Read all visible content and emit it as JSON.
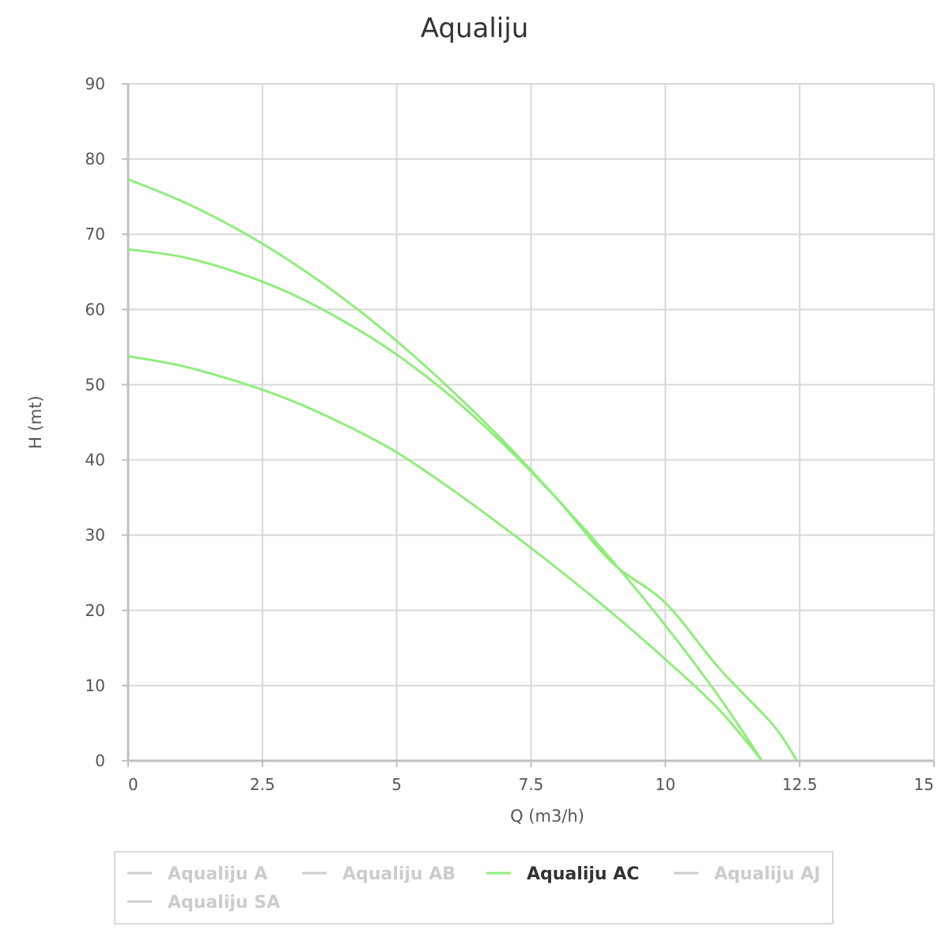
{
  "chart_data": {
    "type": "line",
    "title": "Aqualiju",
    "xlabel": "Q (m3/h)",
    "ylabel": "H (mt)",
    "xlim": [
      0,
      15
    ],
    "ylim": [
      0,
      90
    ],
    "x_ticks": [
      "0",
      "2.5",
      "5",
      "7.5",
      "10",
      "12.5",
      "15"
    ],
    "y_ticks": [
      "0",
      "10",
      "20",
      "30",
      "40",
      "50",
      "60",
      "70",
      "80",
      "90"
    ],
    "grid": true,
    "legend_position": "bottom",
    "series": [
      {
        "group": "Aqualiju AC",
        "color": "#90ed7d",
        "x": [
          0,
          1,
          2,
          3,
          4,
          5,
          6,
          7,
          8,
          9,
          10,
          11,
          11.8
        ],
        "y": [
          53.8,
          52.5,
          50.5,
          48,
          44.8,
          41,
          36.2,
          31,
          25.5,
          19.7,
          13.5,
          6.8,
          0
        ]
      },
      {
        "group": "Aqualiju AC",
        "color": "#90ed7d",
        "x": [
          0,
          1,
          2,
          3,
          4,
          5,
          6,
          7,
          8,
          9,
          10,
          11,
          11.8
        ],
        "y": [
          68,
          67,
          65,
          62.2,
          58.5,
          54,
          48.5,
          42,
          34.7,
          26.7,
          18,
          8.5,
          0
        ]
      },
      {
        "group": "Aqualiju AC",
        "color": "#90ed7d",
        "x": [
          0,
          1,
          2,
          3,
          4,
          5,
          6,
          7,
          8,
          9,
          10,
          11,
          12,
          12.45
        ],
        "y": [
          77.3,
          74.4,
          70.8,
          66.5,
          61.5,
          55.8,
          49.4,
          42.4,
          34.7,
          26.4,
          21,
          12.3,
          4.8,
          0
        ]
      }
    ]
  },
  "legend": {
    "items": [
      {
        "label": "Aqualiju A",
        "active": false,
        "color": "#cccccc"
      },
      {
        "label": "Aqualiju AB",
        "active": false,
        "color": "#cccccc"
      },
      {
        "label": "Aqualiju AC",
        "active": true,
        "color": "#90ed7d"
      },
      {
        "label": "Aqualiju AJ",
        "active": false,
        "color": "#cccccc"
      },
      {
        "label": "Aqualiju SA",
        "active": false,
        "color": "#cccccc"
      }
    ]
  }
}
